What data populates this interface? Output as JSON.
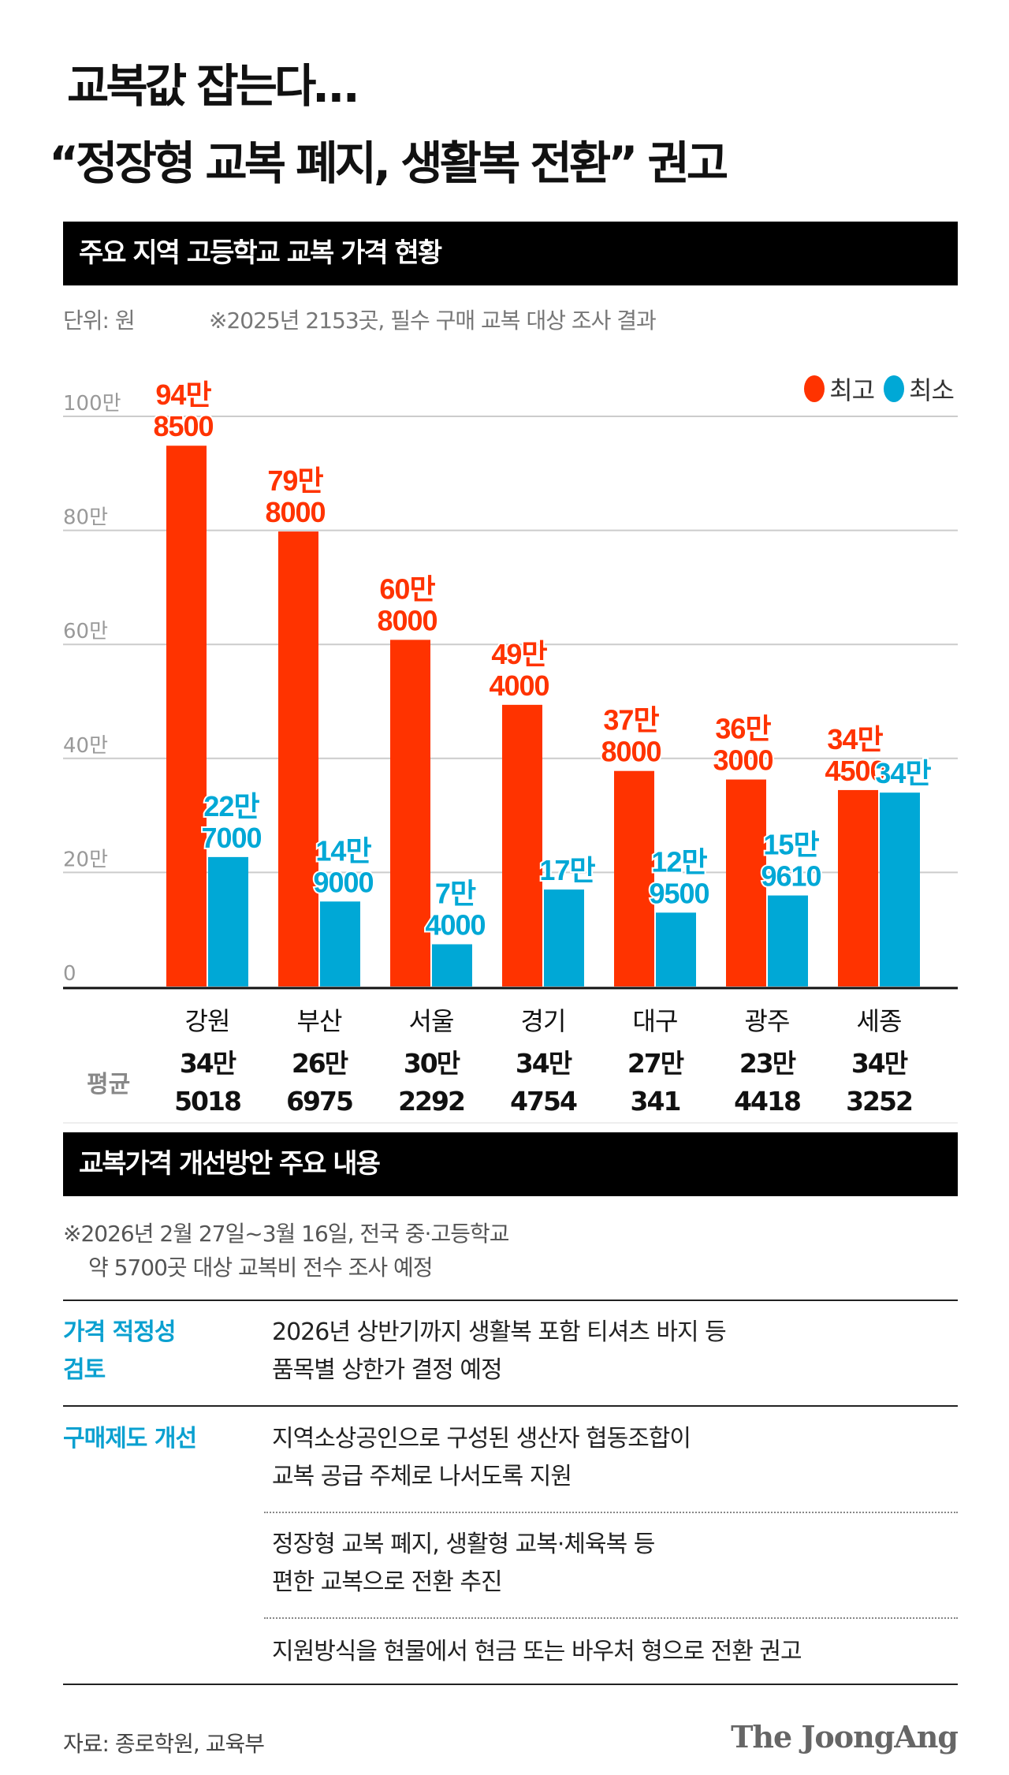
{
  "header": {
    "title_line1": "교복값 잡는다…",
    "title_line2": "“정장형 교복 폐지, 생활복 전환” 권고"
  },
  "section1": {
    "title": "주요 지역 고등학교 교복 가격 현황",
    "unit": "단위: 원",
    "note": "※2025년 2153곳, 필수 구매 교복 대상 조사 결과"
  },
  "chart_data": {
    "type": "bar",
    "categories": [
      "강원",
      "부산",
      "서울",
      "경기",
      "대구",
      "광주",
      "세종"
    ],
    "ylim": [
      0,
      1000000
    ],
    "yticks": [
      0,
      200000,
      400000,
      600000,
      800000,
      1000000
    ],
    "ytick_labels": [
      "0",
      "20만",
      "40만",
      "60만",
      "80만",
      "100만"
    ],
    "grid": true,
    "legend_position": "top-right",
    "series": [
      {
        "name": "최고",
        "color": "#ff3300",
        "values": [
          948500,
          798000,
          608000,
          494000,
          378000,
          363000,
          344500
        ],
        "labels": [
          [
            "94만",
            "8500"
          ],
          [
            "79만",
            "8000"
          ],
          [
            "60만",
            "8000"
          ],
          [
            "49만",
            "4000"
          ],
          [
            "37만",
            "8000"
          ],
          [
            "36만",
            "3000"
          ],
          [
            "34만",
            "4500"
          ]
        ]
      },
      {
        "name": "최소",
        "color": "#00a8d6",
        "values": [
          227000,
          149000,
          74000,
          170000,
          129500,
          159610,
          340000
        ],
        "labels": [
          [
            "22만",
            "7000"
          ],
          [
            "14만",
            "9000"
          ],
          [
            "7만",
            "4000"
          ],
          [
            "17만"
          ],
          [
            "12만",
            "9500"
          ],
          [
            "15만",
            "9610"
          ],
          [
            "34만"
          ]
        ]
      }
    ],
    "average_label": "평균",
    "averages": [
      [
        "34만",
        "5018"
      ],
      [
        "26만",
        "6975"
      ],
      [
        "30만",
        "2292"
      ],
      [
        "34만",
        "4754"
      ],
      [
        "27만",
        "341"
      ],
      [
        "23만",
        "4418"
      ],
      [
        "34만",
        "3252"
      ]
    ]
  },
  "section2": {
    "title": "교복가격 개선방안 주요 내용",
    "note_line1": "※2026년 2월 27일~3월 16일, 전국 중·고등학교",
    "note_line2": "약 5700곳 대상 교복비 전수 조사 예정",
    "rows": [
      {
        "category": [
          "가격 적정성",
          "검토"
        ],
        "text": [
          "2026년 상반기까지 생활복 포함 티셔츠 바지 등",
          "품목별 상한가 결정 예정"
        ]
      },
      {
        "category": [
          "구매제도 개선"
        ],
        "text": [
          "지역소상공인으로 구성된 생산자 협동조합이",
          "교복 공급 주체로 나서도록 지원"
        ]
      },
      {
        "category": [],
        "text": [
          "정장형 교복 폐지, 생활형 교복·체육복 등",
          "편한 교복으로 전환 추진"
        ]
      },
      {
        "category": [],
        "text": [
          "지원방식을 현물에서 현금 또는 바우처 형으로 전환 권고"
        ]
      }
    ]
  },
  "footer": {
    "source": "자료: 종로학원, 교육부",
    "logo": "The JoongAng"
  }
}
